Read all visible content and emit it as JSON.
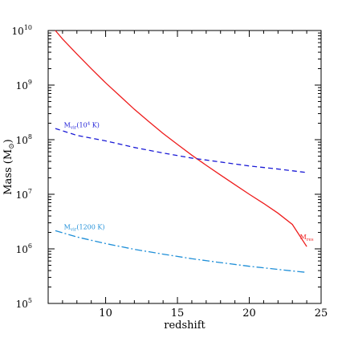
{
  "chart_data": {
    "type": "line",
    "xlabel": "redshift",
    "ylabel": "Mass (M",
    "ylabel_sub": "⊙",
    "ylabel_close": ")",
    "xlim": [
      6,
      25
    ],
    "ylim": [
      100000,
      10000000000
    ],
    "yscale": "log",
    "x_ticks": [
      10,
      15,
      20,
      25
    ],
    "x_minor_step": 1,
    "y_ticks": [
      {
        "value": 100000,
        "base": "10",
        "exp": "5"
      },
      {
        "value": 1000000,
        "base": "10",
        "exp": "6"
      },
      {
        "value": 10000000,
        "base": "10",
        "exp": "7"
      },
      {
        "value": 100000000,
        "base": "10",
        "exp": "8"
      },
      {
        "value": 1000000000,
        "base": "10",
        "exp": "9"
      },
      {
        "value": 10000000000,
        "base": "10",
        "exp": "10"
      }
    ],
    "series": [
      {
        "name": "M_res",
        "label_main": "M",
        "label_sub": "res",
        "label_rest": "",
        "label_at": {
          "x": 24,
          "y": 1500000
        },
        "color": "#ee1c1c",
        "style": "solid",
        "points": [
          [
            6.5,
            10000000000
          ],
          [
            7,
            7000000000
          ],
          [
            8,
            3700000000
          ],
          [
            9,
            2000000000
          ],
          [
            10,
            1100000000
          ],
          [
            11,
            630000000
          ],
          [
            12,
            360000000
          ],
          [
            13,
            215000000
          ],
          [
            14,
            130000000
          ],
          [
            15,
            82000000
          ],
          [
            16,
            52000000
          ],
          [
            17,
            34000000
          ],
          [
            18,
            22500000
          ],
          [
            19,
            15000000
          ],
          [
            20,
            10000000
          ],
          [
            21,
            6800000
          ],
          [
            22,
            4500000
          ],
          [
            23,
            2800000
          ],
          [
            24,
            1100000
          ]
        ]
      },
      {
        "name": "M_vir(10^4 K)",
        "label_main": "M",
        "label_sub": "vir",
        "label_rest": "(10",
        "label_sup": "4",
        "label_tail": " K)",
        "label_at": {
          "x": 7.1,
          "y": 170000000
        },
        "color": "#1a1ad6",
        "style": "dashed",
        "points": [
          [
            6.5,
            160000000
          ],
          [
            8,
            120000000
          ],
          [
            10,
            95000000
          ],
          [
            12,
            72000000
          ],
          [
            14,
            57000000
          ],
          [
            16,
            46000000
          ],
          [
            18,
            39000000
          ],
          [
            20,
            33000000
          ],
          [
            22,
            29000000
          ],
          [
            24,
            25000000
          ]
        ]
      },
      {
        "name": "M_vir(1200 K)",
        "label_main": "M",
        "label_sub": "vir",
        "label_rest": "(1200 K)",
        "label_at": {
          "x": 7.1,
          "y": 2300000
        },
        "color": "#1f8fd8",
        "style": "dashdot",
        "points": [
          [
            6.5,
            2150000
          ],
          [
            8,
            1650000
          ],
          [
            10,
            1250000
          ],
          [
            12,
            980000
          ],
          [
            14,
            800000
          ],
          [
            16,
            660000
          ],
          [
            18,
            560000
          ],
          [
            20,
            480000
          ],
          [
            22,
            420000
          ],
          [
            24,
            370000
          ]
        ]
      }
    ]
  }
}
